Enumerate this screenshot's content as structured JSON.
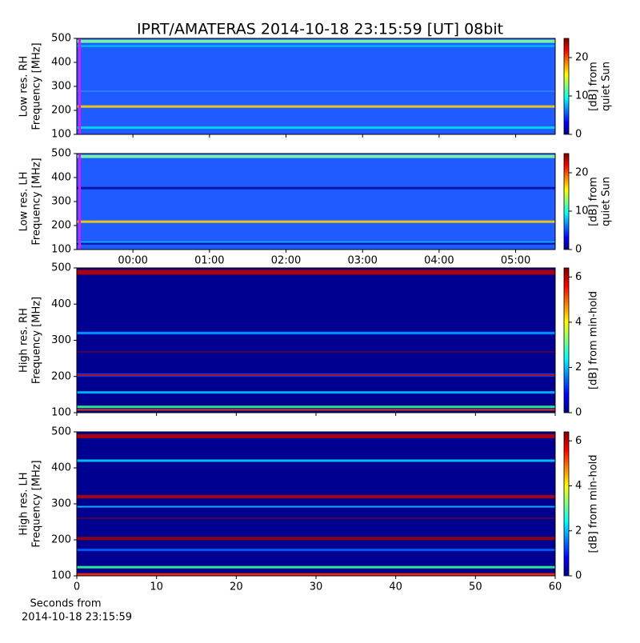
{
  "title": "IPRT/AMATERAS 2014-10-18 23:15:59 [UT]   08bit",
  "chart_data": [
    {
      "type": "heatmap",
      "colormap": "jet",
      "ylabel": [
        "Low res. RH",
        "Frequency [MHz]"
      ],
      "ylim": [
        100,
        500
      ],
      "yticks": [
        100,
        200,
        300,
        400,
        500
      ],
      "xlim": [
        -44,
        331
      ],
      "colorbar": {
        "label": [
          "[dB] from",
          "quiet Sun"
        ],
        "lim": [
          0,
          25
        ],
        "ticks": [
          0,
          10,
          20
        ]
      }
    },
    {
      "type": "heatmap",
      "colormap": "jet",
      "ylabel": [
        "Low res. LH",
        "Frequency [MHz]"
      ],
      "ylim": [
        100,
        500
      ],
      "yticks": [
        100,
        200,
        300,
        400,
        500
      ],
      "xlim": [
        -44,
        331
      ],
      "xticks": [
        {
          "value": 0,
          "label": "00:00"
        },
        {
          "value": 60,
          "label": "01:00"
        },
        {
          "value": 120,
          "label": "02:00"
        },
        {
          "value": 180,
          "label": "03:00"
        },
        {
          "value": 240,
          "label": "04:00"
        },
        {
          "value": 300,
          "label": "05:00"
        }
      ],
      "colorbar": {
        "label": [
          "[dB] from",
          "quiet Sun"
        ],
        "lim": [
          0,
          25
        ],
        "ticks": [
          0,
          10,
          20
        ]
      }
    },
    {
      "type": "heatmap",
      "colormap": "jet",
      "ylabel": [
        "High res. RH",
        "Frequency [MHz]"
      ],
      "ylim": [
        100,
        500
      ],
      "yticks": [
        100,
        200,
        300,
        400,
        500
      ],
      "xlim": [
        0,
        60
      ],
      "colorbar": {
        "label": [
          "[dB] from min-hold"
        ],
        "lim": [
          0,
          6.4
        ],
        "ticks": [
          0,
          2,
          4,
          6
        ]
      }
    },
    {
      "type": "heatmap",
      "colormap": "jet",
      "ylabel": [
        "High res. LH",
        "Frequency [MHz]"
      ],
      "ylim": [
        100,
        500
      ],
      "yticks": [
        100,
        200,
        300,
        400,
        500
      ],
      "xlim": [
        0,
        60
      ],
      "xticks": [
        0,
        10,
        20,
        30,
        40,
        50,
        60
      ],
      "xlabel": [
        "Seconds from",
        "2014-10-18 23:15:59"
      ],
      "colorbar": {
        "label": [
          "[dB] from min-hold"
        ],
        "lim": [
          0,
          6.4
        ],
        "ticks": [
          0,
          2,
          4,
          6
        ]
      }
    }
  ]
}
